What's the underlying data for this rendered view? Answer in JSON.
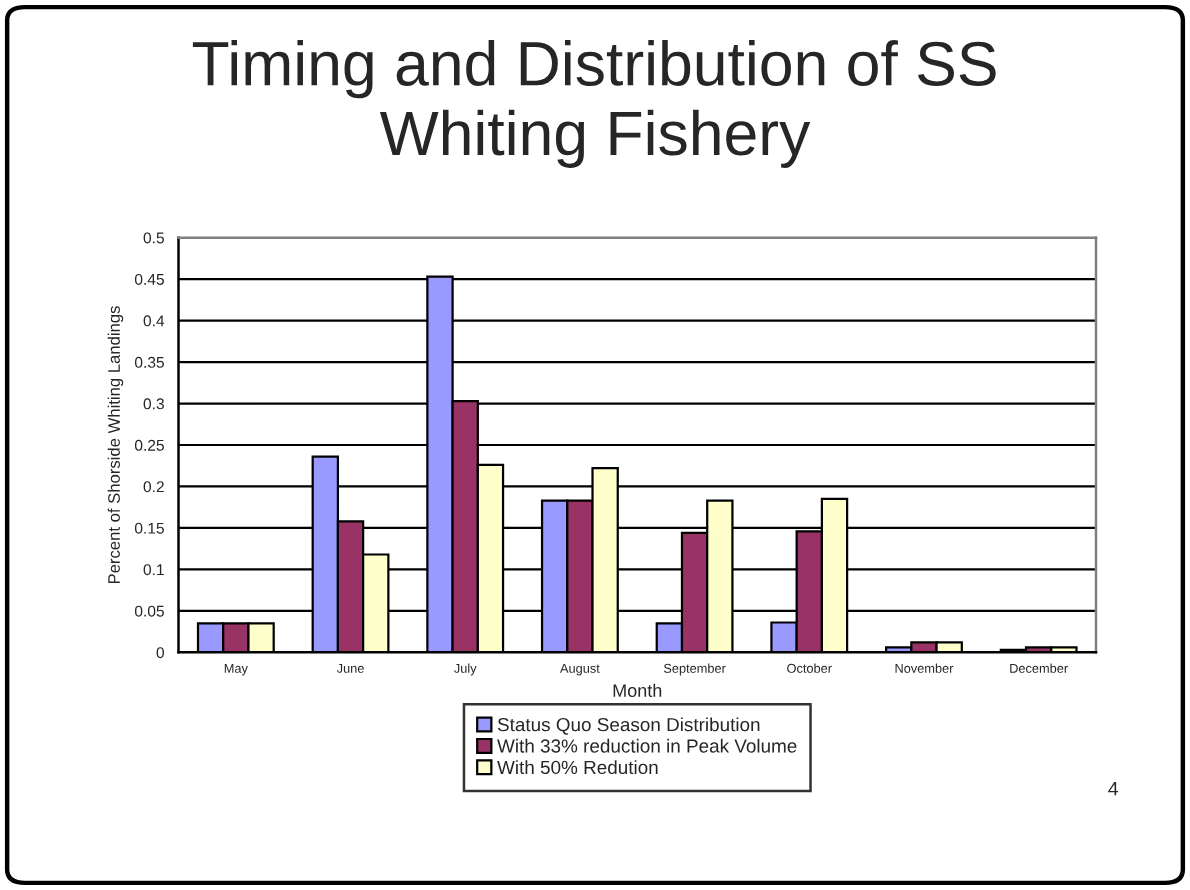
{
  "chart_data": {
    "type": "bar",
    "title": "Timing and Distribution of SS\nWhiting Fishery",
    "xlabel": "Month",
    "ylabel": "Percent of Shorside Whiting Landings",
    "categories": [
      "May",
      "June",
      "July",
      "August",
      "September",
      "October",
      "November",
      "December"
    ],
    "series": [
      {
        "name": "Status Quo Season Distribution",
        "color": "#9999ff",
        "values": [
          0.035,
          0.236,
          0.453,
          0.183,
          0.035,
          0.036,
          0.006,
          0.003
        ]
      },
      {
        "name": "With 33% reduction in Peak Volume",
        "color": "#993366",
        "values": [
          0.035,
          0.158,
          0.303,
          0.183,
          0.144,
          0.146,
          0.012,
          0.006
        ]
      },
      {
        "name": "With 50% Redution",
        "color": "#ffffcc",
        "values": [
          0.035,
          0.118,
          0.226,
          0.222,
          0.183,
          0.185,
          0.012,
          0.006
        ]
      }
    ],
    "ylim": [
      0,
      0.5
    ],
    "yticks": [
      0,
      0.05,
      0.1,
      0.15,
      0.2,
      0.25,
      0.3,
      0.35,
      0.4,
      0.45,
      0.5
    ],
    "grid": "y",
    "legend": "bottom",
    "annotations": [
      "4"
    ]
  }
}
